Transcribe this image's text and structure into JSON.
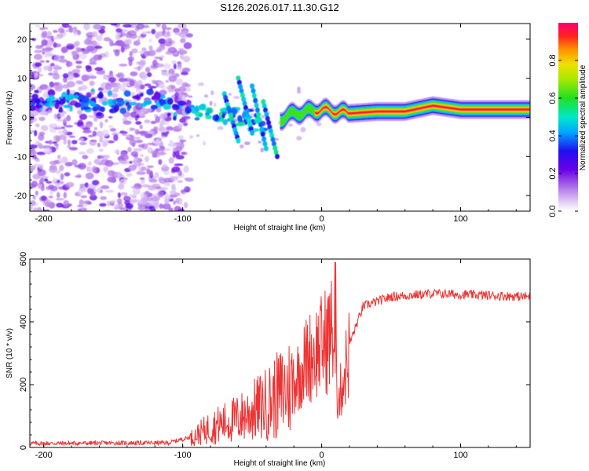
{
  "title": "S126.2026.017.11.30.G12",
  "chart_data": [
    {
      "type": "heatmap",
      "name": "spectrogram",
      "xlabel": "Height of straight line (km)",
      "ylabel": "Frequency (Hz)",
      "xlim": [
        -210,
        150
      ],
      "ylim": [
        -24,
        24
      ],
      "xticks": [
        "-200",
        "-100",
        "0",
        "100"
      ],
      "yticks": [
        "20",
        "10",
        "0",
        "-10",
        "-20"
      ],
      "colorbar": {
        "label": "Normalized spectral amplitude",
        "range": [
          0.0,
          1.0
        ],
        "ticks": [
          "0.0",
          "0.2",
          "0.4",
          "0.6",
          "0.8"
        ]
      },
      "ridge": {
        "description_points": [
          {
            "x": -200,
            "y": 4
          },
          {
            "x": -150,
            "y": 4
          },
          {
            "x": -110,
            "y": 4
          },
          {
            "x": -90,
            "y": 2
          },
          {
            "x": -70,
            "y": 0
          },
          {
            "x": -55,
            "y": 0
          },
          {
            "x": -40,
            "y": -2
          },
          {
            "x": -20,
            "y": 1
          },
          {
            "x": 0,
            "y": 2
          },
          {
            "x": 20,
            "y": 1
          },
          {
            "x": 40,
            "y": 1.5
          },
          {
            "x": 60,
            "y": 1.5
          },
          {
            "x": 80,
            "y": 3
          },
          {
            "x": 100,
            "y": 2
          },
          {
            "x": 150,
            "y": 2
          }
        ]
      }
    },
    {
      "type": "line",
      "name": "snr",
      "xlabel": "Height of straight line (km)",
      "ylabel": "SNR (10 * v/v)",
      "xlim": [
        -210,
        150
      ],
      "ylim": [
        0,
        600
      ],
      "xticks": [
        "-200",
        "-100",
        "0",
        "100"
      ],
      "yticks": [
        "600",
        "400",
        "200",
        "0"
      ],
      "color": "#ee3333",
      "envelope": [
        {
          "x": -210,
          "y": 10
        },
        {
          "x": -110,
          "y": 12
        },
        {
          "x": -95,
          "y": 30
        },
        {
          "x": -80,
          "y": 70
        },
        {
          "x": -60,
          "y": 100
        },
        {
          "x": -40,
          "y": 150
        },
        {
          "x": -20,
          "y": 220
        },
        {
          "x": -10,
          "y": 300
        },
        {
          "x": 0,
          "y": 340
        },
        {
          "x": 8,
          "y": 390
        },
        {
          "x": 12,
          "y": 150
        },
        {
          "x": 20,
          "y": 330
        },
        {
          "x": 30,
          "y": 450
        },
        {
          "x": 50,
          "y": 480
        },
        {
          "x": 80,
          "y": 490
        },
        {
          "x": 150,
          "y": 480
        }
      ]
    }
  ]
}
